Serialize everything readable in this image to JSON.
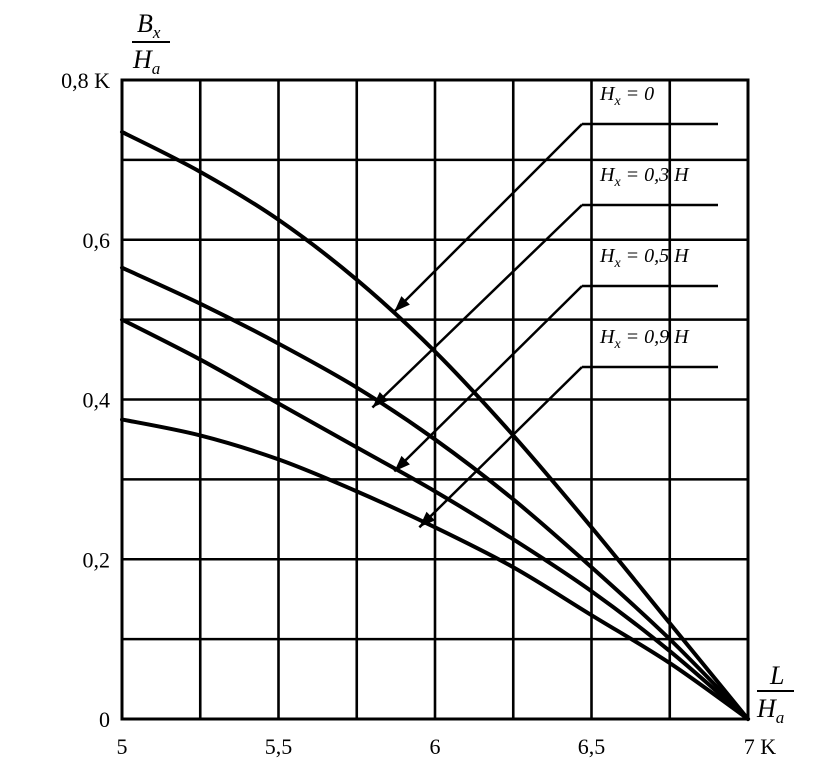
{
  "chart_data": {
    "type": "line",
    "x_axis": {
      "ticks": [
        5,
        5.5,
        6,
        6.5,
        7
      ],
      "tick_labels": [
        "5",
        "5,5",
        "6",
        "6,5",
        "7 K"
      ],
      "label_numerator": "L",
      "label_denominator": "H",
      "label_denominator_sub": "a",
      "range": [
        5,
        7
      ]
    },
    "y_axis": {
      "ticks": [
        0,
        0.2,
        0.4,
        0.6,
        0.8
      ],
      "tick_labels": [
        "0",
        "0,2",
        "0,4",
        "0,6",
        "0,8 K"
      ],
      "label_numerator": "B",
      "label_numerator_sub": "x",
      "label_denominator": "H",
      "label_denominator_sub": "a",
      "range": [
        0,
        0.8
      ]
    },
    "grid": true,
    "series": [
      {
        "name": "H_x = 0",
        "label_main": "H",
        "label_sub": "x",
        "label_rest": " = 0",
        "x": [
          5,
          5.25,
          5.5,
          5.75,
          6,
          6.25,
          6.5,
          6.75,
          7
        ],
        "y": [
          0.735,
          0.685,
          0.625,
          0.55,
          0.46,
          0.355,
          0.24,
          0.12,
          0
        ]
      },
      {
        "name": "H_x = 0,3 H",
        "label_main": "H",
        "label_sub": "x",
        "label_rest": " = 0,3 H",
        "x": [
          5,
          5.25,
          5.5,
          5.75,
          6,
          6.25,
          6.5,
          6.75,
          7
        ],
        "y": [
          0.565,
          0.52,
          0.47,
          0.415,
          0.35,
          0.275,
          0.19,
          0.1,
          0
        ]
      },
      {
        "name": "H_x = 0,5 H",
        "label_main": "H",
        "label_sub": "x",
        "label_rest": " = 0,5 H",
        "x": [
          5,
          5.25,
          5.5,
          5.75,
          6,
          6.25,
          6.5,
          6.75,
          7
        ],
        "y": [
          0.5,
          0.45,
          0.395,
          0.34,
          0.285,
          0.225,
          0.16,
          0.085,
          0
        ]
      },
      {
        "name": "H_x = 0,9 H",
        "label_main": "H",
        "label_sub": "x",
        "label_rest": " = 0,9 H",
        "x": [
          5,
          5.25,
          5.5,
          5.75,
          6,
          6.25,
          6.5,
          6.75,
          7
        ],
        "y": [
          0.375,
          0.355,
          0.325,
          0.285,
          0.24,
          0.19,
          0.13,
          0.07,
          0
        ]
      }
    ],
    "annotations": [
      {
        "series": 0,
        "arrow_tip": [
          5.87,
          0.51
        ]
      },
      {
        "series": 1,
        "arrow_tip": [
          5.8,
          0.39
        ]
      },
      {
        "series": 2,
        "arrow_tip": [
          5.87,
          0.31
        ]
      },
      {
        "series": 3,
        "arrow_tip": [
          5.95,
          0.24
        ]
      }
    ]
  }
}
